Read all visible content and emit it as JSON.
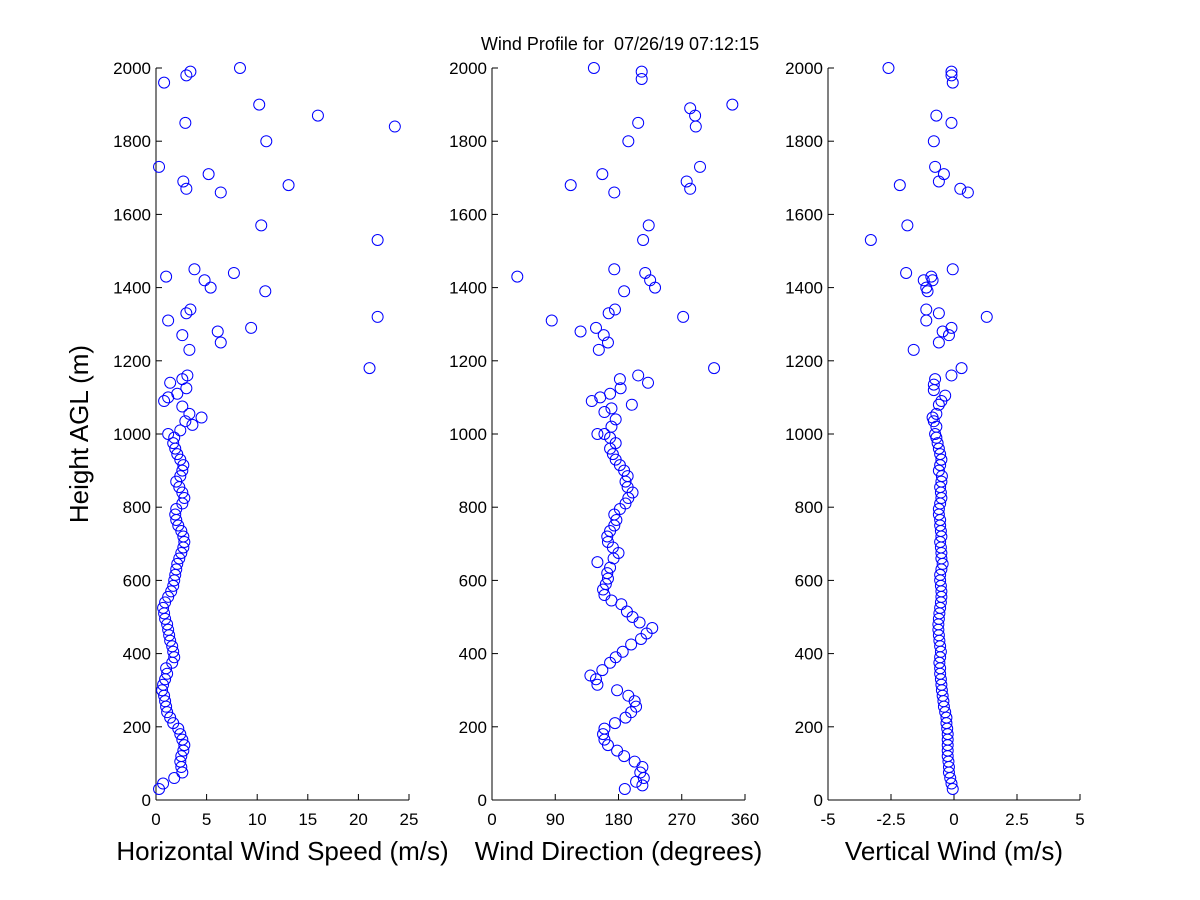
{
  "title": "Wind Profile for  07/26/19 07:12:15",
  "marker_color": "#0000ff",
  "ylabel": "Height AGL (m)",
  "chart_data": [
    {
      "type": "scatter",
      "name": "horizontal",
      "xlabel": "Horizontal Wind Speed (m/s)",
      "ylabel": "Height AGL (m)",
      "xlim": [
        0,
        25
      ],
      "ylim": [
        0,
        2000
      ],
      "xticks": [
        0,
        5,
        10,
        15,
        20,
        25
      ],
      "xtick_labels": [
        "0",
        "5",
        "10",
        "15",
        "20",
        "25"
      ],
      "yticks": [
        0,
        200,
        400,
        600,
        800,
        1000,
        1200,
        1400,
        1600,
        1800,
        2000
      ],
      "ytick_labels": [
        "0",
        "200",
        "400",
        "600",
        "800",
        "1000",
        "1200",
        "1400",
        "1600",
        "1800",
        "2000"
      ],
      "grid": false,
      "points": [
        [
          0.3,
          30
        ],
        [
          0.7,
          45
        ],
        [
          1.8,
          60
        ],
        [
          2.6,
          75
        ],
        [
          2.5,
          90
        ],
        [
          2.4,
          105
        ],
        [
          2.5,
          120
        ],
        [
          2.7,
          135
        ],
        [
          2.8,
          150
        ],
        [
          2.6,
          165
        ],
        [
          2.4,
          180
        ],
        [
          2.2,
          195
        ],
        [
          1.7,
          210
        ],
        [
          1.4,
          225
        ],
        [
          1.1,
          240
        ],
        [
          1.0,
          255
        ],
        [
          0.9,
          270
        ],
        [
          0.8,
          285
        ],
        [
          0.6,
          300
        ],
        [
          0.7,
          315
        ],
        [
          0.9,
          330
        ],
        [
          1.1,
          345
        ],
        [
          1.0,
          360
        ],
        [
          1.6,
          375
        ],
        [
          1.8,
          390
        ],
        [
          1.7,
          405
        ],
        [
          1.6,
          420
        ],
        [
          1.4,
          435
        ],
        [
          1.3,
          450
        ],
        [
          1.2,
          465
        ],
        [
          1.1,
          480
        ],
        [
          0.9,
          495
        ],
        [
          0.8,
          510
        ],
        [
          0.7,
          525
        ],
        [
          0.9,
          540
        ],
        [
          1.2,
          555
        ],
        [
          1.5,
          570
        ],
        [
          1.7,
          585
        ],
        [
          1.8,
          600
        ],
        [
          1.9,
          615
        ],
        [
          2.0,
          630
        ],
        [
          2.1,
          645
        ],
        [
          2.3,
          660
        ],
        [
          2.5,
          675
        ],
        [
          2.7,
          690
        ],
        [
          2.8,
          705
        ],
        [
          2.7,
          720
        ],
        [
          2.5,
          735
        ],
        [
          2.2,
          750
        ],
        [
          2.0,
          765
        ],
        [
          1.9,
          780
        ],
        [
          2.0,
          795
        ],
        [
          2.6,
          810
        ],
        [
          2.8,
          825
        ],
        [
          2.6,
          840
        ],
        [
          2.3,
          855
        ],
        [
          2.0,
          870
        ],
        [
          2.4,
          885
        ],
        [
          2.6,
          900
        ],
        [
          2.7,
          915
        ],
        [
          2.4,
          930
        ],
        [
          2.1,
          945
        ],
        [
          1.9,
          960
        ],
        [
          1.7,
          975
        ],
        [
          1.8,
          990
        ],
        [
          1.2,
          1000
        ],
        [
          2.4,
          1010
        ],
        [
          3.6,
          1025
        ],
        [
          2.9,
          1035
        ],
        [
          4.5,
          1045
        ],
        [
          3.3,
          1055
        ],
        [
          2.6,
          1075
        ],
        [
          0.8,
          1090
        ],
        [
          1.2,
          1100
        ],
        [
          2.1,
          1110
        ],
        [
          3.0,
          1125
        ],
        [
          1.4,
          1140
        ],
        [
          2.6,
          1150
        ],
        [
          3.1,
          1160
        ],
        [
          21.1,
          1180
        ],
        [
          3.3,
          1230
        ],
        [
          6.4,
          1250
        ],
        [
          2.6,
          1270
        ],
        [
          6.1,
          1280
        ],
        [
          9.4,
          1290
        ],
        [
          1.2,
          1310
        ],
        [
          21.9,
          1320
        ],
        [
          3.0,
          1330
        ],
        [
          3.4,
          1340
        ],
        [
          10.8,
          1390
        ],
        [
          5.4,
          1400
        ],
        [
          4.8,
          1420
        ],
        [
          1.0,
          1430
        ],
        [
          7.7,
          1440
        ],
        [
          3.8,
          1450
        ],
        [
          21.9,
          1530
        ],
        [
          10.4,
          1570
        ],
        [
          6.4,
          1660
        ],
        [
          3.0,
          1670
        ],
        [
          13.1,
          1680
        ],
        [
          2.7,
          1690
        ],
        [
          5.2,
          1710
        ],
        [
          0.3,
          1730
        ],
        [
          10.9,
          1800
        ],
        [
          23.6,
          1840
        ],
        [
          2.9,
          1850
        ],
        [
          16.0,
          1870
        ],
        [
          10.2,
          1900
        ],
        [
          0.8,
          1960
        ],
        [
          3.0,
          1980
        ],
        [
          3.4,
          1990
        ],
        [
          8.3,
          2000
        ]
      ]
    },
    {
      "type": "scatter",
      "name": "direction",
      "xlabel": "Wind Direction (degrees)",
      "xlim": [
        0,
        360
      ],
      "ylim": [
        0,
        2000
      ],
      "xticks": [
        0,
        90,
        180,
        270,
        360
      ],
      "xtick_labels": [
        "0",
        "90",
        "180",
        "270",
        "360"
      ],
      "yticks": [
        0,
        200,
        400,
        600,
        800,
        1000,
        1200,
        1400,
        1600,
        1800,
        2000
      ],
      "ytick_labels": [
        "0",
        "200",
        "400",
        "600",
        "800",
        "1000",
        "1200",
        "1400",
        "1600",
        "1800",
        "2000"
      ],
      "grid": false,
      "points": [
        [
          189,
          30
        ],
        [
          205,
          50
        ],
        [
          214,
          40
        ],
        [
          216,
          60
        ],
        [
          211,
          75
        ],
        [
          214,
          90
        ],
        [
          203,
          105
        ],
        [
          188,
          120
        ],
        [
          178,
          135
        ],
        [
          165,
          150
        ],
        [
          160,
          165
        ],
        [
          158,
          180
        ],
        [
          160,
          195
        ],
        [
          175,
          210
        ],
        [
          190,
          225
        ],
        [
          198,
          240
        ],
        [
          205,
          255
        ],
        [
          203,
          270
        ],
        [
          194,
          285
        ],
        [
          178,
          300
        ],
        [
          150,
          315
        ],
        [
          148,
          330
        ],
        [
          140,
          340
        ],
        [
          157,
          355
        ],
        [
          168,
          375
        ],
        [
          176,
          390
        ],
        [
          186,
          405
        ],
        [
          198,
          425
        ],
        [
          212,
          440
        ],
        [
          220,
          455
        ],
        [
          228,
          470
        ],
        [
          210,
          485
        ],
        [
          200,
          500
        ],
        [
          192,
          515
        ],
        [
          184,
          535
        ],
        [
          170,
          545
        ],
        [
          160,
          560
        ],
        [
          158,
          575
        ],
        [
          162,
          590
        ],
        [
          165,
          605
        ],
        [
          164,
          620
        ],
        [
          168,
          635
        ],
        [
          150,
          650
        ],
        [
          173,
          660
        ],
        [
          180,
          675
        ],
        [
          172,
          690
        ],
        [
          165,
          705
        ],
        [
          164,
          720
        ],
        [
          168,
          735
        ],
        [
          174,
          750
        ],
        [
          177,
          765
        ],
        [
          174,
          780
        ],
        [
          182,
          795
        ],
        [
          190,
          810
        ],
        [
          194,
          825
        ],
        [
          200,
          840
        ],
        [
          193,
          855
        ],
        [
          190,
          870
        ],
        [
          193,
          885
        ],
        [
          188,
          900
        ],
        [
          182,
          915
        ],
        [
          176,
          930
        ],
        [
          172,
          945
        ],
        [
          168,
          960
        ],
        [
          176,
          975
        ],
        [
          168,
          990
        ],
        [
          160,
          1000
        ],
        [
          150,
          1000
        ],
        [
          170,
          1020
        ],
        [
          176,
          1040
        ],
        [
          160,
          1060
        ],
        [
          170,
          1070
        ],
        [
          199,
          1080
        ],
        [
          142,
          1090
        ],
        [
          154,
          1100
        ],
        [
          168,
          1110
        ],
        [
          183,
          1125
        ],
        [
          222,
          1140
        ],
        [
          182,
          1150
        ],
        [
          208,
          1160
        ],
        [
          316,
          1180
        ],
        [
          152,
          1230
        ],
        [
          165,
          1250
        ],
        [
          159,
          1270
        ],
        [
          126,
          1280
        ],
        [
          148,
          1290
        ],
        [
          85,
          1310
        ],
        [
          272,
          1320
        ],
        [
          166,
          1330
        ],
        [
          175,
          1340
        ],
        [
          188,
          1390
        ],
        [
          232,
          1400
        ],
        [
          225,
          1420
        ],
        [
          36,
          1430
        ],
        [
          218,
          1440
        ],
        [
          174,
          1450
        ],
        [
          215,
          1530
        ],
        [
          223,
          1570
        ],
        [
          174,
          1660
        ],
        [
          282,
          1670
        ],
        [
          112,
          1680
        ],
        [
          277,
          1690
        ],
        [
          157,
          1710
        ],
        [
          296,
          1730
        ],
        [
          194,
          1800
        ],
        [
          290,
          1840
        ],
        [
          208,
          1850
        ],
        [
          289,
          1870
        ],
        [
          282,
          1890
        ],
        [
          342,
          1900
        ],
        [
          213,
          1970
        ],
        [
          213,
          1990
        ],
        [
          145,
          2000
        ]
      ]
    },
    {
      "type": "scatter",
      "name": "vertical",
      "xlabel": "Vertical Wind (m/s)",
      "xlim": [
        -5,
        5
      ],
      "ylim": [
        0,
        2000
      ],
      "xticks": [
        -5,
        -2.5,
        0,
        2.5,
        5
      ],
      "xtick_labels": [
        "-5",
        "-2.5",
        "0",
        "2.5",
        "5"
      ],
      "yticks": [
        0,
        200,
        400,
        600,
        800,
        1000,
        1200,
        1400,
        1600,
        1800,
        2000
      ],
      "ytick_labels": [
        "0",
        "200",
        "400",
        "600",
        "800",
        "1000",
        "1200",
        "1400",
        "1600",
        "1800",
        "2000"
      ],
      "grid": false,
      "points": [
        [
          -0.05,
          30
        ],
        [
          -0.1,
          45
        ],
        [
          -0.15,
          60
        ],
        [
          -0.2,
          75
        ],
        [
          -0.2,
          90
        ],
        [
          -0.22,
          105
        ],
        [
          -0.25,
          120
        ],
        [
          -0.25,
          135
        ],
        [
          -0.25,
          150
        ],
        [
          -0.25,
          165
        ],
        [
          -0.25,
          180
        ],
        [
          -0.27,
          195
        ],
        [
          -0.3,
          210
        ],
        [
          -0.3,
          225
        ],
        [
          -0.35,
          240
        ],
        [
          -0.4,
          255
        ],
        [
          -0.42,
          270
        ],
        [
          -0.45,
          285
        ],
        [
          -0.48,
          300
        ],
        [
          -0.5,
          315
        ],
        [
          -0.52,
          330
        ],
        [
          -0.55,
          345
        ],
        [
          -0.55,
          360
        ],
        [
          -0.58,
          375
        ],
        [
          -0.55,
          390
        ],
        [
          -0.52,
          405
        ],
        [
          -0.55,
          420
        ],
        [
          -0.58,
          435
        ],
        [
          -0.6,
          450
        ],
        [
          -0.62,
          465
        ],
        [
          -0.62,
          480
        ],
        [
          -0.6,
          495
        ],
        [
          -0.58,
          510
        ],
        [
          -0.55,
          525
        ],
        [
          -0.52,
          540
        ],
        [
          -0.5,
          555
        ],
        [
          -0.5,
          570
        ],
        [
          -0.52,
          585
        ],
        [
          -0.55,
          600
        ],
        [
          -0.55,
          615
        ],
        [
          -0.5,
          630
        ],
        [
          -0.45,
          645
        ],
        [
          -0.5,
          660
        ],
        [
          -0.5,
          675
        ],
        [
          -0.52,
          690
        ],
        [
          -0.55,
          705
        ],
        [
          -0.5,
          720
        ],
        [
          -0.52,
          735
        ],
        [
          -0.55,
          750
        ],
        [
          -0.55,
          765
        ],
        [
          -0.6,
          780
        ],
        [
          -0.6,
          795
        ],
        [
          -0.55,
          810
        ],
        [
          -0.5,
          825
        ],
        [
          -0.52,
          840
        ],
        [
          -0.55,
          855
        ],
        [
          -0.5,
          870
        ],
        [
          -0.48,
          885
        ],
        [
          -0.6,
          900
        ],
        [
          -0.55,
          915
        ],
        [
          -0.5,
          930
        ],
        [
          -0.55,
          945
        ],
        [
          -0.6,
          960
        ],
        [
          -0.65,
          975
        ],
        [
          -0.7,
          990
        ],
        [
          -0.75,
          1000
        ],
        [
          -0.7,
          1020
        ],
        [
          -0.8,
          1035
        ],
        [
          -0.85,
          1045
        ],
        [
          -0.7,
          1055
        ],
        [
          -0.6,
          1080
        ],
        [
          -0.5,
          1090
        ],
        [
          -0.35,
          1105
        ],
        [
          -0.8,
          1120
        ],
        [
          -0.8,
          1135
        ],
        [
          -0.75,
          1150
        ],
        [
          -0.1,
          1160
        ],
        [
          0.3,
          1180
        ],
        [
          -1.6,
          1230
        ],
        [
          -0.6,
          1250
        ],
        [
          -0.2,
          1270
        ],
        [
          -0.45,
          1280
        ],
        [
          -0.1,
          1290
        ],
        [
          -1.1,
          1310
        ],
        [
          1.3,
          1320
        ],
        [
          -0.6,
          1330
        ],
        [
          -1.1,
          1340
        ],
        [
          -1.05,
          1390
        ],
        [
          -1.1,
          1400
        ],
        [
          -0.85,
          1420
        ],
        [
          -1.2,
          1420
        ],
        [
          -0.9,
          1430
        ],
        [
          -1.9,
          1440
        ],
        [
          -0.05,
          1450
        ],
        [
          -3.3,
          1530
        ],
        [
          -1.85,
          1570
        ],
        [
          0.55,
          1660
        ],
        [
          0.25,
          1670
        ],
        [
          -2.15,
          1680
        ],
        [
          -0.6,
          1690
        ],
        [
          -0.4,
          1710
        ],
        [
          -0.75,
          1730
        ],
        [
          -0.8,
          1800
        ],
        [
          -0.1,
          1850
        ],
        [
          -0.7,
          1870
        ],
        [
          -0.05,
          1960
        ],
        [
          -0.1,
          1980
        ],
        [
          -0.1,
          1990
        ],
        [
          -2.6,
          2000
        ]
      ]
    }
  ]
}
